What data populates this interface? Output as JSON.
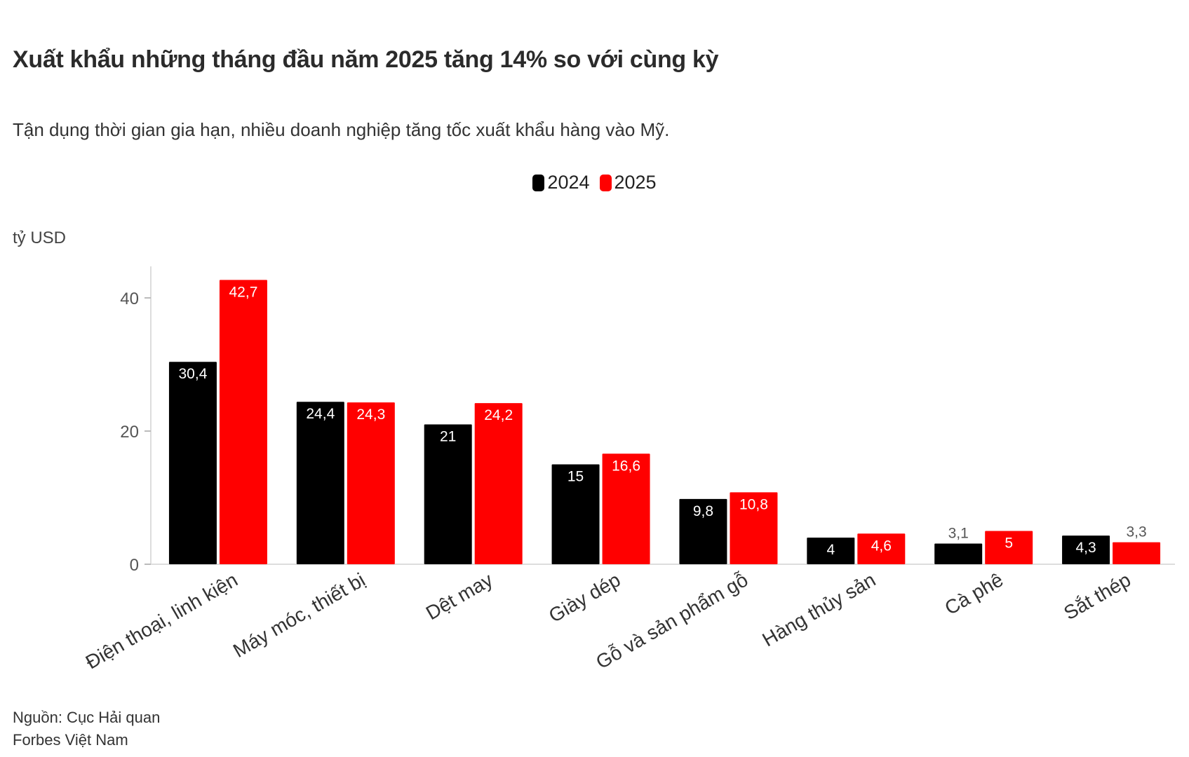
{
  "title": "Xuất khẩu những tháng đầu năm 2025 tăng 14% so với cùng kỳ",
  "subtitle": "Tận dụng thời gian gia hạn, nhiều doanh nghiệp tăng tốc xuất khẩu hàng vào Mỹ.",
  "unit_label": "tỷ USD",
  "source_lines": [
    "Nguồn: Cục Hải quan",
    "Forbes Việt Nam"
  ],
  "colors": {
    "2024": "#000000",
    "2025": "#ff0000"
  },
  "chart_data": {
    "type": "bar",
    "title": "Xuất khẩu những tháng đầu năm 2025 tăng 14% so với cùng kỳ",
    "subtitle": "Tận dụng thời gian gia hạn, nhiều doanh nghiệp tăng tốc xuất khẩu hàng vào Mỹ.",
    "ylabel": "tỷ USD",
    "xlabel": "",
    "ylim": [
      0,
      45
    ],
    "yticks": [
      0,
      20,
      40
    ],
    "ytick_labels": [
      "0",
      "20",
      "40"
    ],
    "legend_position": "top-center",
    "grid": false,
    "categories": [
      "Điện thoại, linh kiện",
      "Máy móc, thiết bị",
      "Dệt may",
      "Giày dép",
      "Gỗ và sản phẩm gỗ",
      "Hàng thủy sản",
      "Cà phê",
      "Sắt thép"
    ],
    "series": [
      {
        "name": "2024",
        "values": [
          30.4,
          24.4,
          21,
          15,
          9.8,
          4,
          3.1,
          4.3
        ],
        "labels": [
          "30,4",
          "24,4",
          "21",
          "15",
          "9,8",
          "4",
          "3,1",
          "4,3"
        ]
      },
      {
        "name": "2025",
        "values": [
          42.7,
          24.3,
          24.2,
          16.6,
          10.8,
          4.6,
          5,
          3.3
        ],
        "labels": [
          "42,7",
          "24,3",
          "24,2",
          "16,6",
          "10,8",
          "4,6",
          "5",
          "3,3"
        ]
      }
    ]
  }
}
